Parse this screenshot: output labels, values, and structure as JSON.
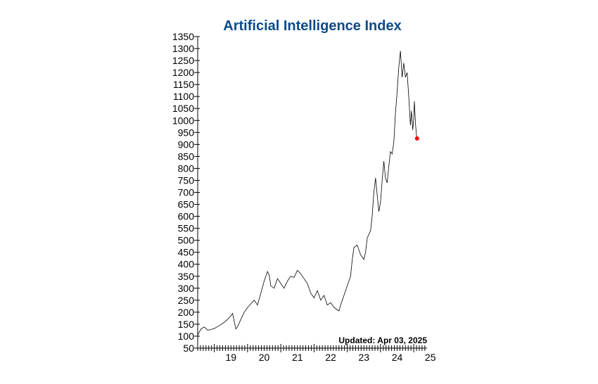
{
  "chart_data": {
    "type": "line",
    "title": "Artificial Intelligence Index",
    "title_color": "#0a4a8a",
    "line_color": "#000000",
    "marker_color": "#ff0000",
    "updated_text": "Updated: Apr 03, 2025",
    "y_range": [
      50,
      1350
    ],
    "y_ticks": [
      50,
      100,
      150,
      200,
      250,
      300,
      350,
      400,
      450,
      500,
      550,
      600,
      650,
      700,
      750,
      800,
      850,
      900,
      950,
      1000,
      1050,
      1100,
      1150,
      1200,
      1250,
      1300,
      1350
    ],
    "x_range": [
      2018.5,
      2025.4
    ],
    "x_tick_labels": [
      {
        "x": 2019,
        "label": "19"
      },
      {
        "x": 2020,
        "label": "20"
      },
      {
        "x": 2021,
        "label": "21"
      },
      {
        "x": 2022,
        "label": "22"
      },
      {
        "x": 2023,
        "label": "23"
      },
      {
        "x": 2024,
        "label": "24"
      },
      {
        "x": 2025,
        "label": "25"
      }
    ],
    "grid": false,
    "series": [
      {
        "points": [
          [
            2018.5,
            105
          ],
          [
            2018.6,
            130
          ],
          [
            2018.7,
            138
          ],
          [
            2018.8,
            125
          ],
          [
            2018.9,
            128
          ],
          [
            2019.0,
            132
          ],
          [
            2019.1,
            140
          ],
          [
            2019.2,
            148
          ],
          [
            2019.3,
            158
          ],
          [
            2019.4,
            170
          ],
          [
            2019.5,
            185
          ],
          [
            2019.55,
            195
          ],
          [
            2019.6,
            160
          ],
          [
            2019.65,
            130
          ],
          [
            2019.7,
            140
          ],
          [
            2019.8,
            170
          ],
          [
            2019.9,
            200
          ],
          [
            2020.0,
            220
          ],
          [
            2020.1,
            235
          ],
          [
            2020.2,
            250
          ],
          [
            2020.3,
            230
          ],
          [
            2020.4,
            280
          ],
          [
            2020.5,
            330
          ],
          [
            2020.6,
            370
          ],
          [
            2020.65,
            355
          ],
          [
            2020.7,
            310
          ],
          [
            2020.8,
            300
          ],
          [
            2020.9,
            340
          ],
          [
            2021.0,
            320
          ],
          [
            2021.1,
            300
          ],
          [
            2021.2,
            330
          ],
          [
            2021.3,
            350
          ],
          [
            2021.4,
            345
          ],
          [
            2021.5,
            375
          ],
          [
            2021.6,
            360
          ],
          [
            2021.7,
            340
          ],
          [
            2021.8,
            320
          ],
          [
            2021.9,
            280
          ],
          [
            2022.0,
            260
          ],
          [
            2022.1,
            290
          ],
          [
            2022.2,
            250
          ],
          [
            2022.3,
            270
          ],
          [
            2022.4,
            230
          ],
          [
            2022.5,
            240
          ],
          [
            2022.6,
            220
          ],
          [
            2022.7,
            210
          ],
          [
            2022.75,
            205
          ],
          [
            2022.8,
            230
          ],
          [
            2022.9,
            270
          ],
          [
            2023.0,
            310
          ],
          [
            2023.1,
            350
          ],
          [
            2023.15,
            420
          ],
          [
            2023.2,
            470
          ],
          [
            2023.3,
            480
          ],
          [
            2023.4,
            440
          ],
          [
            2023.5,
            420
          ],
          [
            2023.55,
            450
          ],
          [
            2023.6,
            510
          ],
          [
            2023.7,
            540
          ],
          [
            2023.75,
            600
          ],
          [
            2023.8,
            700
          ],
          [
            2023.85,
            760
          ],
          [
            2023.9,
            690
          ],
          [
            2023.95,
            620
          ],
          [
            2024.0,
            660
          ],
          [
            2024.05,
            750
          ],
          [
            2024.1,
            830
          ],
          [
            2024.15,
            760
          ],
          [
            2024.2,
            740
          ],
          [
            2024.25,
            810
          ],
          [
            2024.3,
            870
          ],
          [
            2024.35,
            860
          ],
          [
            2024.4,
            910
          ],
          [
            2024.45,
            1030
          ],
          [
            2024.5,
            1120
          ],
          [
            2024.55,
            1220
          ],
          [
            2024.6,
            1290
          ],
          [
            2024.65,
            1180
          ],
          [
            2024.7,
            1240
          ],
          [
            2024.75,
            1180
          ],
          [
            2024.8,
            1200
          ],
          [
            2024.85,
            1100
          ],
          [
            2024.9,
            980
          ],
          [
            2024.93,
            1040
          ],
          [
            2024.97,
            960
          ],
          [
            2025.0,
            1010
          ],
          [
            2025.02,
            1080
          ],
          [
            2025.05,
            990
          ],
          [
            2025.08,
            940
          ],
          [
            2025.1,
            925
          ]
        ]
      }
    ]
  }
}
